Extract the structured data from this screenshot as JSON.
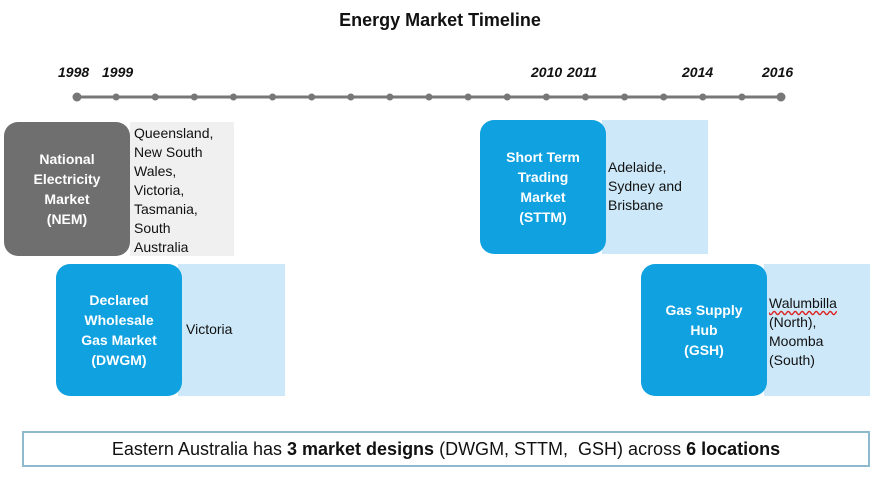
{
  "title": "Energy Market Timeline",
  "timeline": {
    "years": [
      "1998",
      "1999",
      "2010",
      "2011",
      "2014",
      "2016"
    ]
  },
  "markets": [
    {
      "name": "National\nElectricity\nMarket\n(NEM)",
      "locations": "Queensland,\nNew South\nWales,\nVictoria,\nTasmania,\nSouth\nAustralia",
      "color": "#6f6f6f",
      "panel_color": "#f0f0f0"
    },
    {
      "name": "Declared\nWholesale\nGas Market\n(DWGM)",
      "locations": "Victoria",
      "color": "#0fa1e0",
      "panel_color": "#cde9f9"
    },
    {
      "name": "Short Term\nTrading\nMarket\n(STTM)",
      "locations": "Adelaide,\nSydney and\nBrisbane",
      "color": "#0fa1e0",
      "panel_color": "#cde9f9"
    },
    {
      "name": "Gas Supply\nHub\n(GSH)",
      "locations_parts": [
        "Walumbilla",
        "\n(North),\nMoomba\n(South)"
      ],
      "color": "#0fa1e0",
      "panel_color": "#cde9f9"
    }
  ],
  "summary": {
    "part1": "Eastern Australia has ",
    "part2": "3 market designs",
    "part3": " (DWGM, STTM,  GSH) across ",
    "part4": "6 locations"
  },
  "colors": {
    "timeline": "#777777",
    "summary_border": "#8fb9cc"
  }
}
